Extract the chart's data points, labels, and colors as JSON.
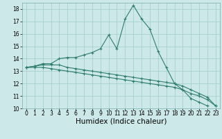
{
  "title": "",
  "xlabel": "Humidex (Indice chaleur)",
  "bg_color": "#cce8e8",
  "line_color": "#2e7d6e",
  "grid_color": "#a0cccc",
  "x_values": [
    0,
    1,
    2,
    3,
    4,
    5,
    6,
    7,
    8,
    9,
    10,
    11,
    12,
    13,
    14,
    15,
    16,
    17,
    18,
    19,
    20,
    21,
    22,
    23
  ],
  "series1": [
    13.3,
    13.4,
    13.6,
    13.6,
    14.0,
    14.1,
    14.1,
    14.3,
    14.5,
    14.8,
    15.9,
    14.8,
    17.2,
    18.3,
    17.2,
    16.4,
    14.6,
    13.3,
    12.0,
    11.5,
    10.8,
    10.5,
    10.2,
    null
  ],
  "series2": [
    13.3,
    13.4,
    13.5,
    13.5,
    13.5,
    13.3,
    13.2,
    13.1,
    13.0,
    12.9,
    12.8,
    12.7,
    12.6,
    12.5,
    12.4,
    12.3,
    12.2,
    12.1,
    12.0,
    11.8,
    11.5,
    11.2,
    10.9,
    10.2
  ],
  "series3": [
    13.3,
    13.3,
    13.3,
    13.2,
    13.1,
    13.0,
    12.9,
    12.8,
    12.7,
    12.6,
    12.5,
    12.4,
    12.3,
    12.2,
    12.1,
    12.0,
    11.9,
    11.8,
    11.7,
    11.5,
    11.2,
    11.0,
    10.7,
    10.2
  ],
  "ylim": [
    10,
    18.5
  ],
  "yticks": [
    10,
    11,
    12,
    13,
    14,
    15,
    16,
    17,
    18
  ],
  "xticks": [
    0,
    1,
    2,
    3,
    4,
    5,
    6,
    7,
    8,
    9,
    10,
    11,
    12,
    13,
    14,
    15,
    16,
    17,
    18,
    19,
    20,
    21,
    22,
    23
  ],
  "tick_fontsize": 5.5,
  "label_fontsize": 7.5
}
